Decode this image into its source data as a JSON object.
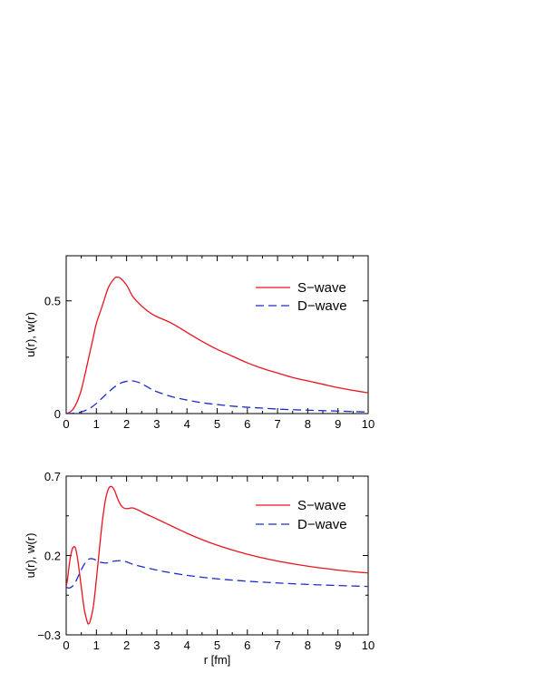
{
  "chart_data": [
    {
      "type": "line",
      "xlabel": "",
      "ylabel": "u(r), w(r)",
      "xlim": [
        0,
        10
      ],
      "ylim": [
        0,
        0.7
      ],
      "xticks": [
        "0",
        "1",
        "2",
        "3",
        "4",
        "5",
        "6",
        "7",
        "8",
        "9",
        "10"
      ],
      "yticks": [
        {
          "value": 0,
          "label": "0"
        },
        {
          "value": 0.5,
          "label": "0.5"
        }
      ],
      "legend_position": "top-right",
      "series": [
        {
          "name": "S−wave",
          "color": "#e8141e",
          "dash": "solid",
          "x": [
            0,
            0.1,
            0.2,
            0.3,
            0.4,
            0.5,
            0.6,
            0.7,
            0.8,
            0.9,
            1.0,
            1.2,
            1.4,
            1.6,
            1.7,
            1.8,
            2.0,
            2.2,
            2.4,
            2.6,
            2.8,
            3.0,
            3.5,
            4.0,
            4.5,
            5.0,
            5.5,
            6.0,
            6.5,
            7.0,
            7.5,
            8.0,
            8.5,
            9.0,
            9.5,
            10.0
          ],
          "y": [
            0,
            0.005,
            0.015,
            0.035,
            0.065,
            0.105,
            0.16,
            0.22,
            0.28,
            0.34,
            0.4,
            0.48,
            0.56,
            0.6,
            0.605,
            0.6,
            0.57,
            0.52,
            0.49,
            0.465,
            0.445,
            0.43,
            0.4,
            0.36,
            0.32,
            0.285,
            0.255,
            0.225,
            0.2,
            0.18,
            0.16,
            0.145,
            0.13,
            0.115,
            0.103,
            0.092
          ]
        },
        {
          "name": "D−wave",
          "color": "#1e2ccd",
          "dash": "dashed",
          "x": [
            0,
            0.2,
            0.4,
            0.6,
            0.8,
            1.0,
            1.2,
            1.4,
            1.6,
            1.8,
            2.0,
            2.2,
            2.4,
            2.6,
            2.8,
            3.0,
            3.5,
            4.0,
            4.5,
            5.0,
            5.5,
            6.0,
            6.5,
            7.0,
            7.5,
            8.0,
            8.5,
            9.0,
            9.5,
            10.0
          ],
          "y": [
            0,
            0.001,
            0.004,
            0.012,
            0.025,
            0.045,
            0.07,
            0.095,
            0.118,
            0.135,
            0.143,
            0.145,
            0.138,
            0.125,
            0.11,
            0.097,
            0.075,
            0.06,
            0.048,
            0.04,
            0.033,
            0.028,
            0.024,
            0.02,
            0.017,
            0.015,
            0.013,
            0.011,
            0.009,
            0.007
          ]
        }
      ]
    },
    {
      "type": "line",
      "xlabel": "r [fm]",
      "ylabel": "u(r), w(r)",
      "xlim": [
        0,
        10
      ],
      "ylim": [
        -0.3,
        0.7
      ],
      "xticks": [
        "0",
        "1",
        "2",
        "3",
        "4",
        "5",
        "6",
        "7",
        "8",
        "9",
        "10"
      ],
      "yticks": [
        {
          "value": -0.3,
          "label": "−0.3"
        },
        {
          "value": 0.2,
          "label": "0.2"
        },
        {
          "value": 0.7,
          "label": "0.7"
        }
      ],
      "legend_position": "top-right",
      "series": [
        {
          "name": "S−wave",
          "color": "#e8141e",
          "dash": "solid",
          "x": [
            0,
            0.05,
            0.1,
            0.15,
            0.2,
            0.25,
            0.3,
            0.35,
            0.4,
            0.5,
            0.6,
            0.7,
            0.75,
            0.8,
            0.9,
            1.0,
            1.1,
            1.2,
            1.3,
            1.4,
            1.5,
            1.6,
            1.7,
            1.8,
            1.9,
            2.0,
            2.2,
            2.4,
            2.6,
            3.0,
            3.5,
            4.0,
            4.5,
            5.0,
            5.5,
            6.0,
            6.5,
            7.0,
            7.5,
            8.0,
            8.5,
            9.0,
            9.5,
            10.0
          ],
          "y": [
            0,
            0.06,
            0.14,
            0.2,
            0.24,
            0.255,
            0.25,
            0.21,
            0.15,
            0.0,
            -0.14,
            -0.22,
            -0.23,
            -0.21,
            -0.12,
            0.05,
            0.24,
            0.42,
            0.55,
            0.62,
            0.635,
            0.61,
            0.56,
            0.52,
            0.5,
            0.495,
            0.5,
            0.485,
            0.465,
            0.43,
            0.385,
            0.34,
            0.3,
            0.265,
            0.235,
            0.208,
            0.185,
            0.165,
            0.148,
            0.133,
            0.12,
            0.108,
            0.098,
            0.09
          ]
        },
        {
          "name": "D−wave",
          "color": "#1e2ccd",
          "dash": "dashed",
          "x": [
            0,
            0.1,
            0.2,
            0.3,
            0.4,
            0.5,
            0.6,
            0.7,
            0.8,
            0.9,
            1.0,
            1.1,
            1.2,
            1.3,
            1.4,
            1.5,
            1.6,
            1.8,
            2.0,
            2.2,
            2.5,
            3.0,
            3.5,
            4.0,
            4.5,
            5.0,
            5.5,
            6.0,
            6.5,
            7.0,
            7.5,
            8.0,
            8.5,
            9.0,
            9.5,
            10.0
          ],
          "y": [
            0,
            -0.005,
            0.005,
            0.03,
            0.07,
            0.11,
            0.145,
            0.17,
            0.18,
            0.178,
            0.17,
            0.16,
            0.155,
            0.153,
            0.155,
            0.16,
            0.165,
            0.167,
            0.16,
            0.145,
            0.13,
            0.108,
            0.09,
            0.075,
            0.063,
            0.053,
            0.045,
            0.038,
            0.032,
            0.027,
            0.022,
            0.018,
            0.014,
            0.011,
            0.008,
            0.005
          ]
        }
      ]
    }
  ]
}
